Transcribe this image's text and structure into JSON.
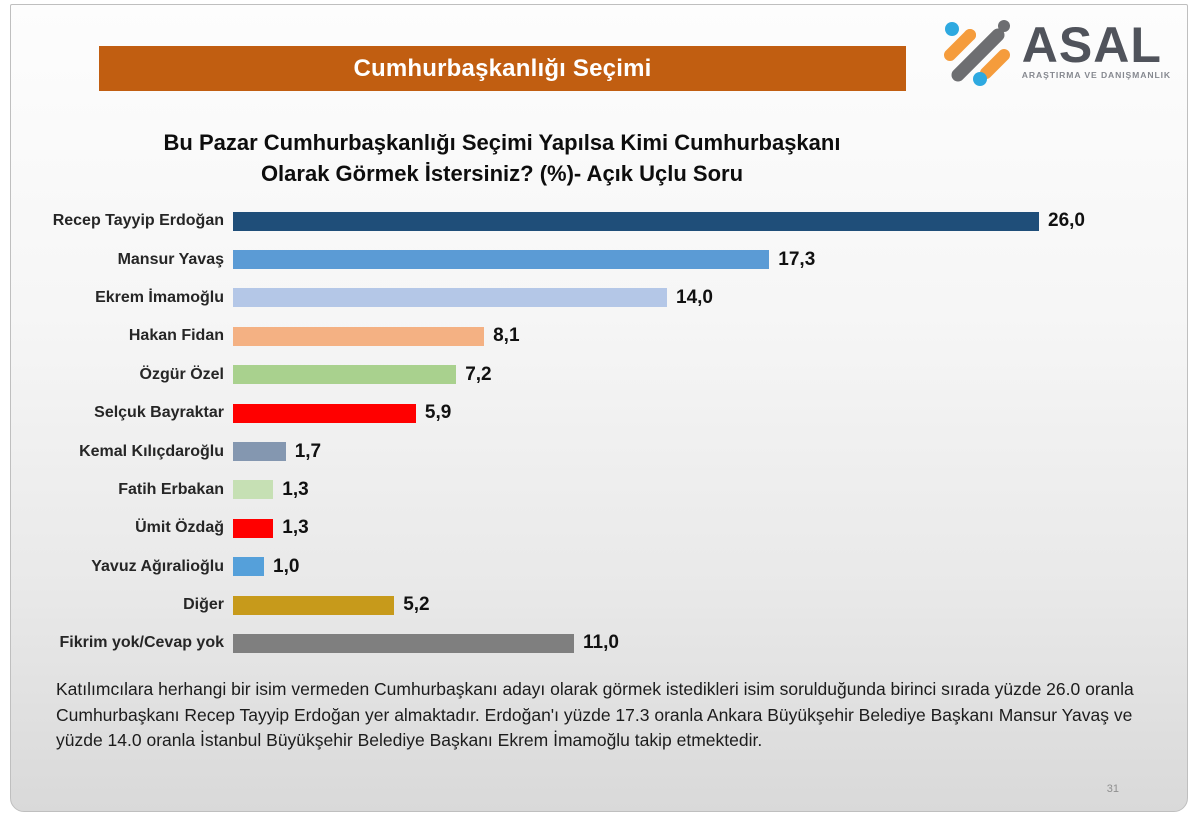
{
  "slide": {
    "banner_title": "Cumhurbaşkanlığı Seçimi",
    "footnote": "Katılımcılara herhangi bir isim vermeden Cumhurbaşkanı adayı olarak görmek istedikleri isim sorulduğunda birinci sırada yüzde 26.0 oranla Cumhurbaşkanı Recep Tayyip Erdoğan yer almaktadır. Erdoğan'ı yüzde 17.3 oranla Ankara Büyükşehir Belediye Başkanı Mansur Yavaş ve yüzde 14.0 oranla İstanbul Büyükşehir Belediye Başkanı Ekrem İmamoğlu takip etmektedir.",
    "page_number": "31"
  },
  "logo": {
    "name": "ASAL",
    "subtitle": "ARAŞTIRMA VE DANIŞMANLIK",
    "name_color": "#50535b",
    "subtitle_color": "#85888f",
    "mark_gray": "#6d6e71",
    "mark_orange": "#f59c3c",
    "mark_blue": "#2ea9e0"
  },
  "theme": {
    "banner_bg": "#c15e11",
    "slide_border": "#bfbfbf"
  },
  "chart_data": {
    "type": "bar",
    "orientation": "horizontal",
    "title": "Bu Pazar Cumhurbaşkanlığı Seçimi Yapılsa Kimi Cumhurbaşkanı Olarak Görmek İstersiniz? (%)- Açık Uçlu Soru",
    "title_lines": [
      "Bu Pazar Cumhurbaşkanlığı Seçimi Yapılsa Kimi Cumhurbaşkanı",
      "Olarak Görmek İstersiniz? (%)- Açık Uçlu Soru"
    ],
    "categories": [
      "Recep Tayyip Erdoğan",
      "Mansur Yavaş",
      "Ekrem İmamoğlu",
      "Hakan Fidan",
      "Özgür Özel",
      "Selçuk Bayraktar",
      "Kemal Kılıçdaroğlu",
      "Fatih Erbakan",
      "Ümit Özdağ",
      "Yavuz Ağıralioğlu",
      "Diğer",
      "Fikrim yok/Cevap yok"
    ],
    "values": [
      26.0,
      17.3,
      14.0,
      8.1,
      7.2,
      5.9,
      1.7,
      1.3,
      1.3,
      1.0,
      5.2,
      11.0
    ],
    "value_labels": [
      "26,0",
      "17,3",
      "14,0",
      "8,1",
      "7,2",
      "5,9",
      "1,7",
      "1,3",
      "1,3",
      "1,0",
      "5,2",
      "11,0"
    ],
    "bar_colors": [
      "#1f4e79",
      "#5b9bd5",
      "#b4c7e7",
      "#f4b183",
      "#a9d18e",
      "#ff0000",
      "#8497b0",
      "#c6e0b4",
      "#ff0000",
      "#55a0da",
      "#c79a1b",
      "#7f7f7f"
    ],
    "xlim": [
      0,
      26
    ],
    "grid": false,
    "legend": false,
    "unit": "%"
  }
}
